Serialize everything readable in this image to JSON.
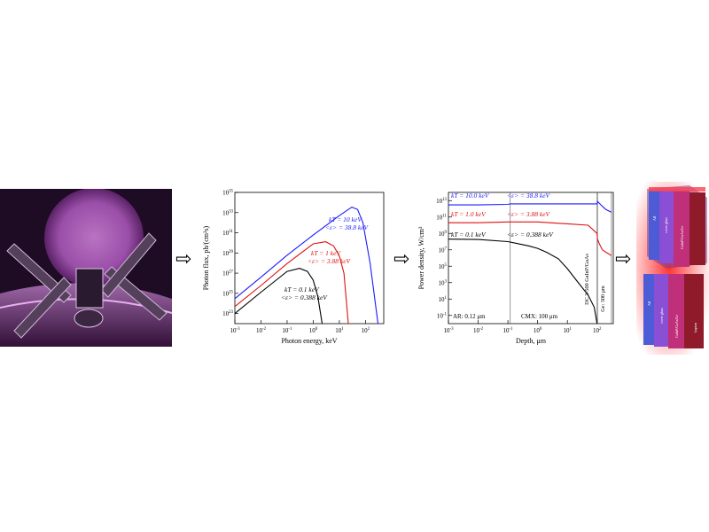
{
  "colors": {
    "blue": "#1a1aff",
    "red": "#e01010",
    "black": "#000000",
    "satellite_bg": "#1e0b24",
    "sun": "#9a4ea8",
    "glow": "#ff1010"
  },
  "icons": {
    "flow_arrow": "⇨"
  },
  "panels": {
    "satellite": {
      "name": "satellite-photo"
    },
    "solar_cell": {
      "name": "multijunction-solar-cell-diagram",
      "layer_labels": [
        "AR",
        "cover glass",
        "GaInP/GaAs/Ge",
        "kapton"
      ]
    }
  },
  "chart_data": [
    {
      "type": "line",
      "xlabel": "Photon energy, keV",
      "ylabel": "Photon flux, ph/(cm²s)",
      "x_scale": "log",
      "y_scale": "log",
      "xlim": [
        0.001,
        500
      ],
      "ylim": [
        1e+22,
        1e+35
      ],
      "x_ticks": [
        {
          "exp": -3,
          "text": "10",
          "sup": "-3"
        },
        {
          "exp": -2,
          "text": "10",
          "sup": "-2"
        },
        {
          "exp": -1,
          "text": "10",
          "sup": "-1"
        },
        {
          "exp": 0,
          "text": "10",
          "sup": "0"
        },
        {
          "exp": 1,
          "text": "10",
          "sup": "1"
        },
        {
          "exp": 2,
          "text": "10",
          "sup": "2"
        }
      ],
      "y_ticks": [
        {
          "exp": 23,
          "text": "10",
          "sup": "23"
        },
        {
          "exp": 25,
          "text": "10",
          "sup": "25"
        },
        {
          "exp": 27,
          "text": "10",
          "sup": "27"
        },
        {
          "exp": 29,
          "text": "10",
          "sup": "29"
        },
        {
          "exp": 31,
          "text": "10",
          "sup": "31"
        },
        {
          "exp": 33,
          "text": "10",
          "sup": "33"
        },
        {
          "exp": 35,
          "text": "10",
          "sup": "35"
        }
      ],
      "series": [
        {
          "color": "#1a1aff",
          "x": [
            0.001,
            0.01,
            0.1,
            1,
            10,
            30,
            50,
            80,
            150,
            300
          ],
          "y": [
            3e+24,
            4e+26,
            6e+28,
            6e+30,
            5e+32,
            3.5e+33,
            2e+33,
            1e+32,
            1e+28,
            1e+22
          ]
        },
        {
          "color": "#e01010",
          "x": [
            0.001,
            0.01,
            0.1,
            1,
            3,
            6,
            10,
            15,
            22
          ],
          "y": [
            5e+23,
            6e+25,
            9e+27,
            8e+29,
            1.3e+30,
            5e+29,
            5e+28,
            1e+27,
            1e+22
          ]
        },
        {
          "color": "#000000",
          "x": [
            0.001,
            0.01,
            0.1,
            0.3,
            0.6,
            1,
            1.5,
            2.2
          ],
          "y": [
            1e+23,
            1.3e+25,
            1.5e+27,
            3e+27,
            1.5e+27,
            2e+26,
            5e+24,
            1e+22
          ]
        }
      ],
      "annotations": [
        {
          "color": "#1a1aff",
          "line1": "kT = 10 keV",
          "line2": "<ε> = 38.8 keV"
        },
        {
          "color": "#e01010",
          "line1": "kT = 1 keV",
          "line2": "<ε> = 3.88 keV"
        },
        {
          "color": "#000000",
          "line1": "kT = 0.1 keV",
          "line2": "<ε> = 0.388 keV"
        }
      ]
    },
    {
      "type": "line",
      "xlabel": "Depth, μm",
      "ylabel": "Power density, W/cm³",
      "x_scale": "log",
      "y_scale": "log",
      "xlim": [
        0.001,
        350
      ],
      "ylim": [
        0.01,
        100000000000000.0
      ],
      "x_ticks": [
        {
          "exp": -3,
          "text": "10",
          "sup": "-3"
        },
        {
          "exp": -2,
          "text": "10",
          "sup": "-2"
        },
        {
          "exp": -1,
          "text": "10",
          "sup": "-1"
        },
        {
          "exp": 0,
          "text": "10",
          "sup": "0"
        },
        {
          "exp": 1,
          "text": "10",
          "sup": "1"
        },
        {
          "exp": 2,
          "text": "10",
          "sup": "2"
        }
      ],
      "y_ticks": [
        {
          "exp": -1,
          "text": "10",
          "sup": "-1"
        },
        {
          "exp": 1,
          "text": "10",
          "sup": "1"
        },
        {
          "exp": 3,
          "text": "10",
          "sup": "3"
        },
        {
          "exp": 5,
          "text": "10",
          "sup": "5"
        },
        {
          "exp": 7,
          "text": "10",
          "sup": "7"
        },
        {
          "exp": 9,
          "text": "10",
          "sup": "9"
        },
        {
          "exp": 11,
          "text": "10",
          "sup": "11"
        },
        {
          "exp": 13,
          "text": "10",
          "sup": "13"
        }
      ],
      "layer_boundaries": [
        0.12,
        100.12,
        103,
        303
      ],
      "layer_labels": {
        "ar": "AR: 0.12 μm",
        "cmx": "CMX: 100 μm",
        "dc": "DC 3-500 GaInP/GaAs",
        "ge": "Ge: 300 μm"
      },
      "series": [
        {
          "color": "#1a1aff",
          "x": [
            0.001,
            0.01,
            0.1,
            0.12,
            1,
            10,
            100,
            103,
            150,
            200,
            300
          ],
          "y": [
            3000000000000.0,
            3000000000000.0,
            3500000000000.0,
            4000000000000.0,
            4000000000000.0,
            4000000000000.0,
            4000000000000.0,
            8000000000000.0,
            2000000000000.0,
            800000000000.0,
            400000000000.0
          ]
        },
        {
          "color": "#e01010",
          "x": [
            0.001,
            0.01,
            0.1,
            0.12,
            1,
            10,
            50,
            100,
            103,
            120,
            150,
            200,
            300
          ],
          "y": [
            20000000000.0,
            20000000000.0,
            25000000000.0,
            25000000000.0,
            25000000000.0,
            15000000000.0,
            10000000000.0,
            1000000000.0,
            200000000.0,
            50000000.0,
            10000000.0,
            5000000.0,
            2000000.0
          ]
        },
        {
          "color": "#000000",
          "x": [
            0.001,
            0.01,
            0.1,
            0.2,
            0.5,
            1,
            2,
            5,
            10,
            20,
            50,
            80,
            100
          ],
          "y": [
            200000000.0,
            180000000.0,
            100000000.0,
            60000000.0,
            30000000.0,
            15000000.0,
            5000000.0,
            800000.0,
            50000.0,
            2000.0,
            30.0,
            1,
            0.01
          ]
        }
      ],
      "annotations": [
        {
          "color": "#1a1aff",
          "left": "kT = 10.0 keV",
          "right": "<ε> = 38.8 keV"
        },
        {
          "color": "#e01010",
          "left": "kT = 1.0 keV",
          "right": "<ε> = 3.88 keV"
        },
        {
          "color": "#000000",
          "left": "kT = 0.1 keV",
          "right": "<ε> = 0.388 keV"
        }
      ]
    }
  ]
}
